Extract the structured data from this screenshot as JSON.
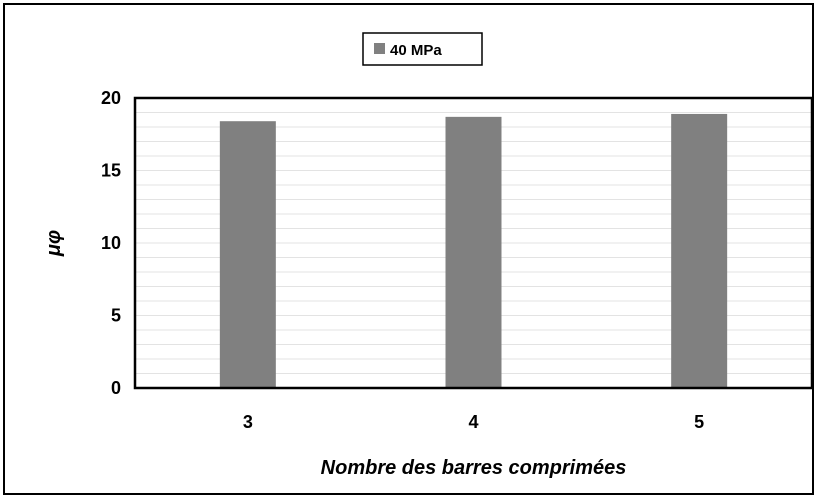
{
  "chart_data": {
    "type": "bar",
    "categories": [
      "3",
      "4",
      "5"
    ],
    "series": [
      {
        "name": "40 MPa",
        "values": [
          18.4,
          18.7,
          18.9
        ]
      }
    ],
    "title": "",
    "xlabel": "Nombre des barres comprimées",
    "ylabel": "μφ",
    "ylim": [
      0,
      20
    ],
    "yticks": [
      0,
      5,
      10,
      15,
      20
    ],
    "grid": true,
    "legend_position": "top-center",
    "colors": {
      "bar": "#808080",
      "grid": "#e3e3e3",
      "axis": "#000000"
    }
  }
}
